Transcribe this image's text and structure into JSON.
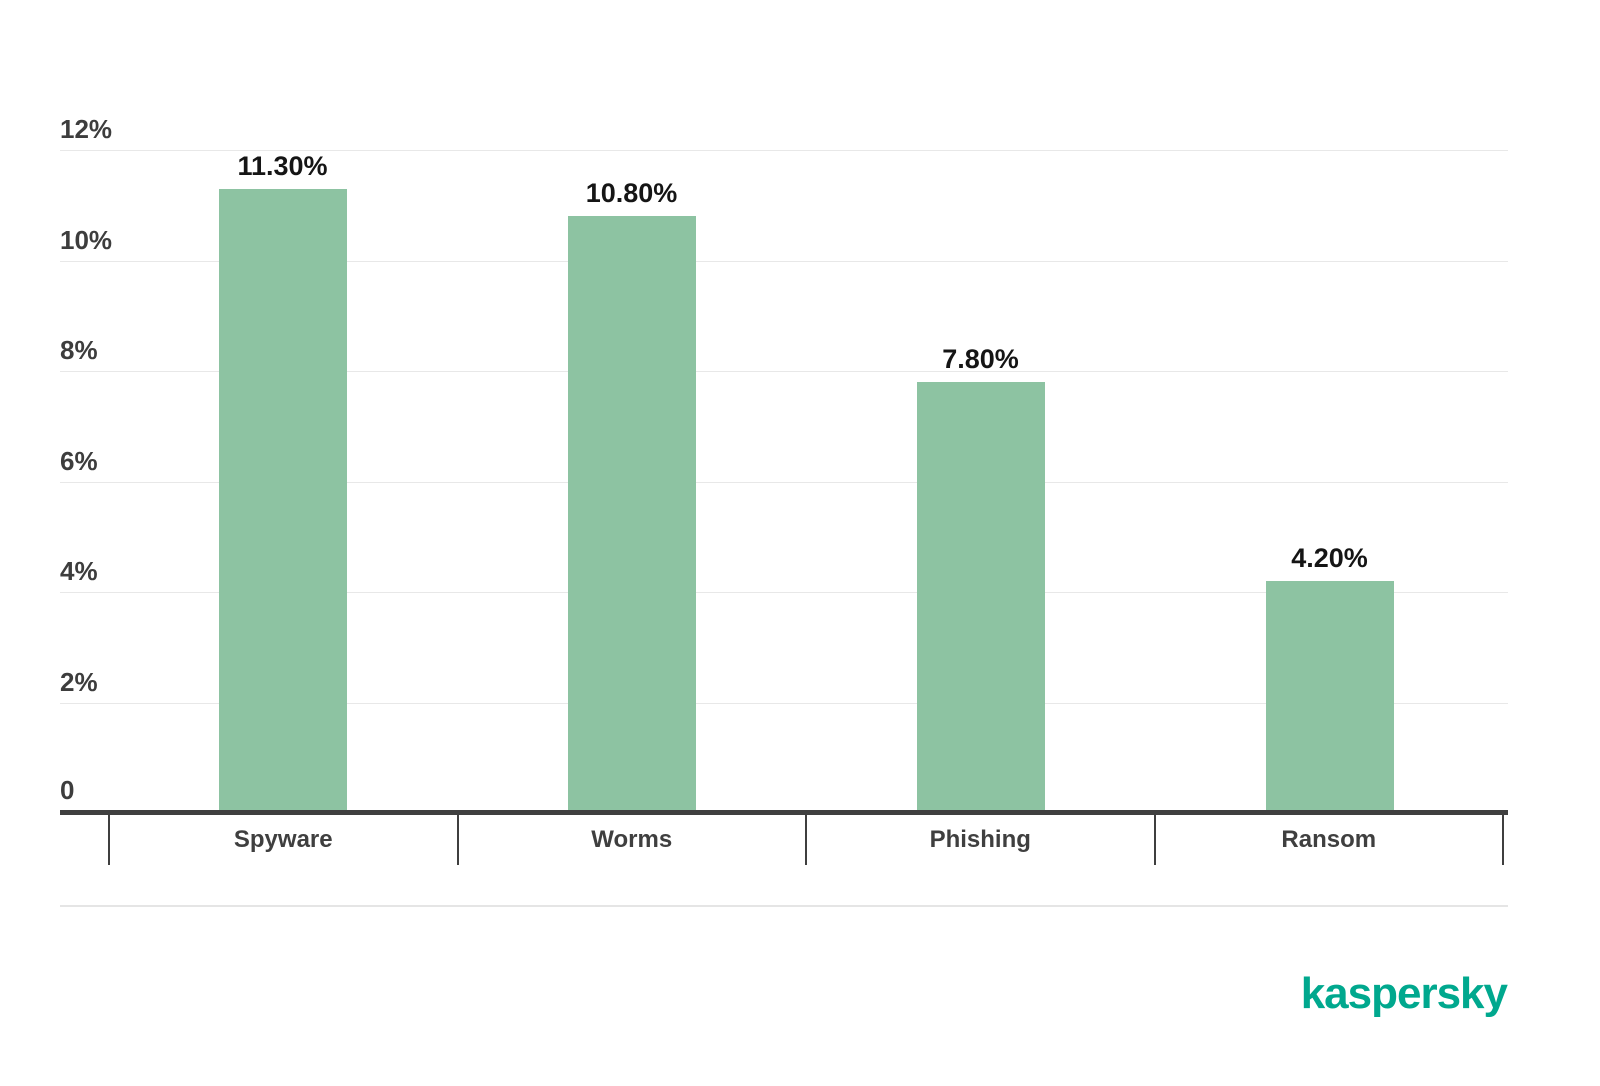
{
  "chart_data": {
    "type": "bar",
    "title": "",
    "categories": [
      "Spyware",
      "Worms",
      "Phishing",
      "Ransom"
    ],
    "values": [
      11.3,
      10.8,
      7.8,
      4.2
    ],
    "value_labels": [
      "11.30%",
      "10.80%",
      "7.80%",
      "4.20%"
    ],
    "ylim": [
      0,
      12
    ],
    "y_ticks": [
      {
        "value": 12,
        "label": "12%"
      },
      {
        "value": 10,
        "label": "10%"
      },
      {
        "value": 8,
        "label": "8%"
      },
      {
        "value": 6,
        "label": "6%"
      },
      {
        "value": 4,
        "label": "4%"
      },
      {
        "value": 2,
        "label": "2%"
      },
      {
        "value": 0,
        "label": "0"
      }
    ],
    "grid": "horizontal-only",
    "legend": "none",
    "bar_color": "#8dc3a2",
    "axis_color": "#3f3f3f",
    "gridline_color": "#e8e8e8",
    "value_label_color": "#151515",
    "tick_label_color": "#3d3d3d"
  },
  "branding": {
    "logo_text": "kaspersky",
    "logo_color": "#00a88e"
  }
}
